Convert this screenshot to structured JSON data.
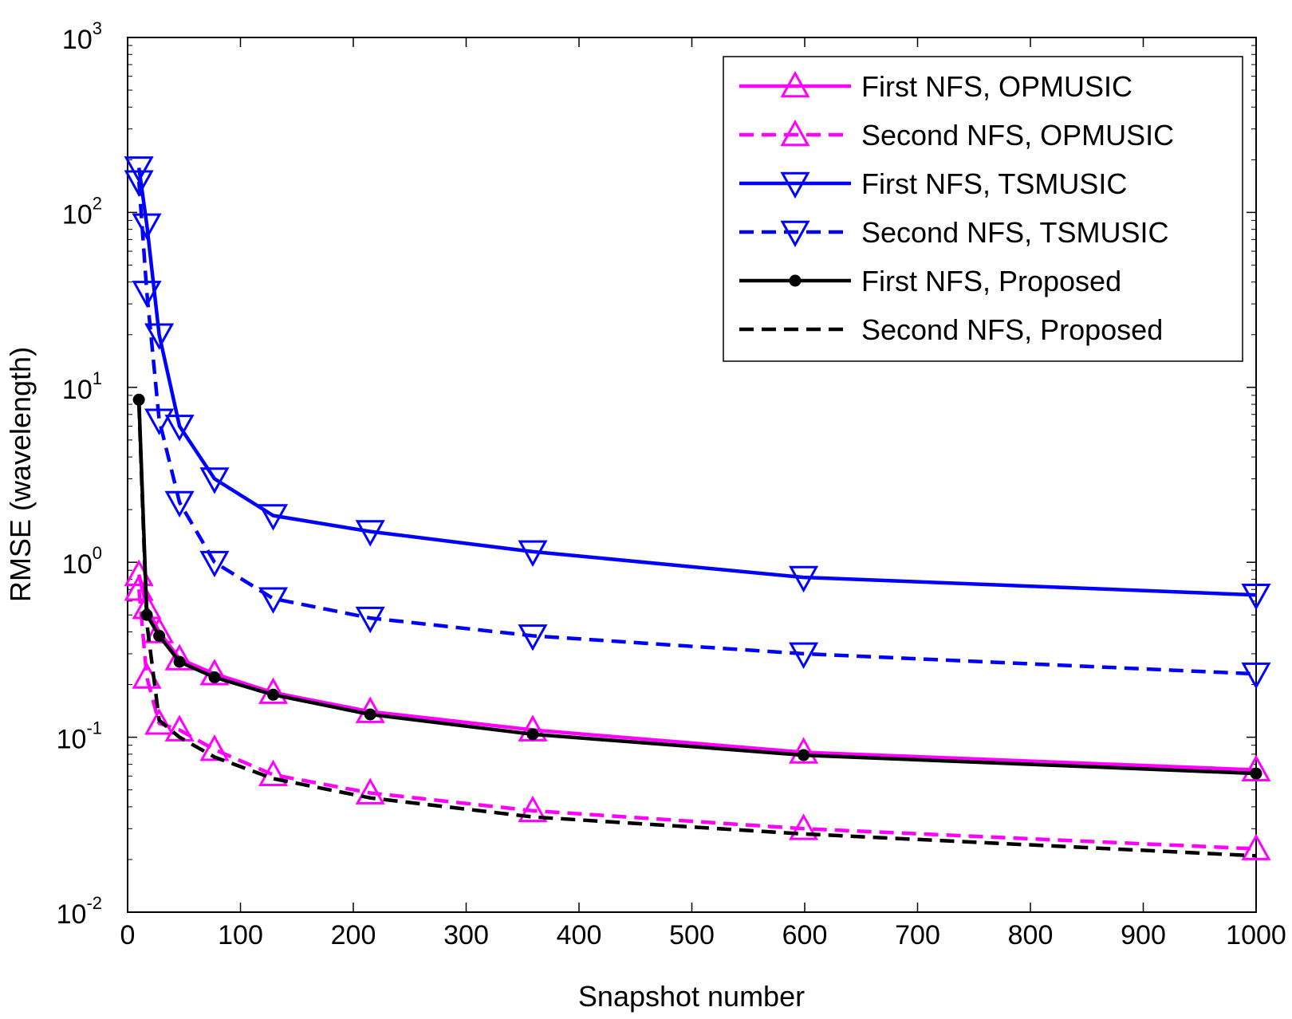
{
  "chart_data": {
    "type": "line",
    "title": "",
    "xlabel": "Snapshot number",
    "ylabel": "RMSE (wavelength)",
    "xscale": "linear",
    "yscale": "log",
    "xlim": [
      0,
      1000
    ],
    "ylim": [
      0.01,
      1000
    ],
    "xticks": [
      "0",
      "100",
      "200",
      "300",
      "400",
      "500",
      "600",
      "700",
      "800",
      "900",
      "1000"
    ],
    "ytick_base": "10",
    "ytick_exponents": [
      "-2",
      "-1",
      "0",
      "1",
      "2",
      "3"
    ],
    "grid": false,
    "legend_position": "top-right",
    "x": [
      10,
      17,
      28,
      46,
      77,
      129,
      215,
      359,
      599,
      1000
    ],
    "series": [
      {
        "name": "First NFS, OPMUSIC",
        "color": "#ff00ff",
        "dash": "solid",
        "marker": "triangle-up",
        "values": [
          0.85,
          0.55,
          0.4,
          0.28,
          0.23,
          0.18,
          0.14,
          0.11,
          0.082,
          0.065
        ]
      },
      {
        "name": "Second NFS, OPMUSIC",
        "color": "#ff00ff",
        "dash": "dashed",
        "marker": "triangle-up",
        "values": [
          0.7,
          0.22,
          0.12,
          0.11,
          0.085,
          0.061,
          0.048,
          0.038,
          0.03,
          0.023
        ]
      },
      {
        "name": "First NFS, TSMUSIC",
        "color": "#0000ff",
        "dash": "solid",
        "marker": "triangle-down",
        "values": [
          180,
          85,
          20,
          6,
          3,
          1.85,
          1.5,
          1.15,
          0.82,
          0.65
        ]
      },
      {
        "name": "Second NFS, TSMUSIC",
        "color": "#0000ff",
        "dash": "dashed",
        "marker": "triangle-down",
        "values": [
          150,
          35,
          6.5,
          2.2,
          1.0,
          0.62,
          0.48,
          0.38,
          0.3,
          0.23
        ]
      },
      {
        "name": "First NFS, Proposed",
        "color": "#000000",
        "dash": "solid",
        "marker": "dot",
        "values": [
          8.5,
          0.5,
          0.38,
          0.27,
          0.22,
          0.175,
          0.135,
          0.104,
          0.079,
          0.062
        ]
      },
      {
        "name": "Second NFS, Proposed",
        "color": "#000000",
        "dash": "dashed",
        "marker": "none",
        "values": [
          8.0,
          0.45,
          0.125,
          0.1,
          0.077,
          0.058,
          0.045,
          0.035,
          0.028,
          0.021
        ]
      }
    ]
  }
}
